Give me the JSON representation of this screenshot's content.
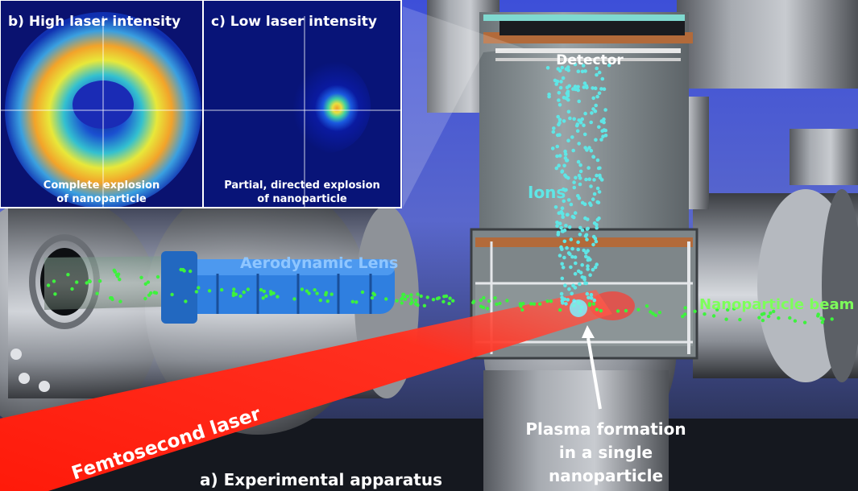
{
  "panels": {
    "high": {
      "title": "b) High laser intensity",
      "caption_line1": "Complete explosion",
      "caption_line2": "of nanoparticle"
    },
    "low": {
      "title": "c) Low laser intensity",
      "caption_line1": "Partial, directed explosion",
      "caption_line2": "of nanoparticle"
    }
  },
  "labels": {
    "detector": "Detector",
    "ions": "Ions",
    "lens": "Aerodynamic Lens",
    "beam": "Nanoparticle beam",
    "laser": "Femtosecond laser",
    "plasma_line1": "Plasma formation",
    "plasma_line2": "in a single",
    "plasma_line3": "nanoparticle",
    "apparatus": "a) Experimental apparatus"
  },
  "colors": {
    "laser": "#ff2a1a",
    "ions": "#5fe6e6",
    "particles": "#3df23d",
    "lens": "#2f7fe0",
    "lens_label": "#8fc6ff",
    "beam_label": "#7dff5a"
  }
}
